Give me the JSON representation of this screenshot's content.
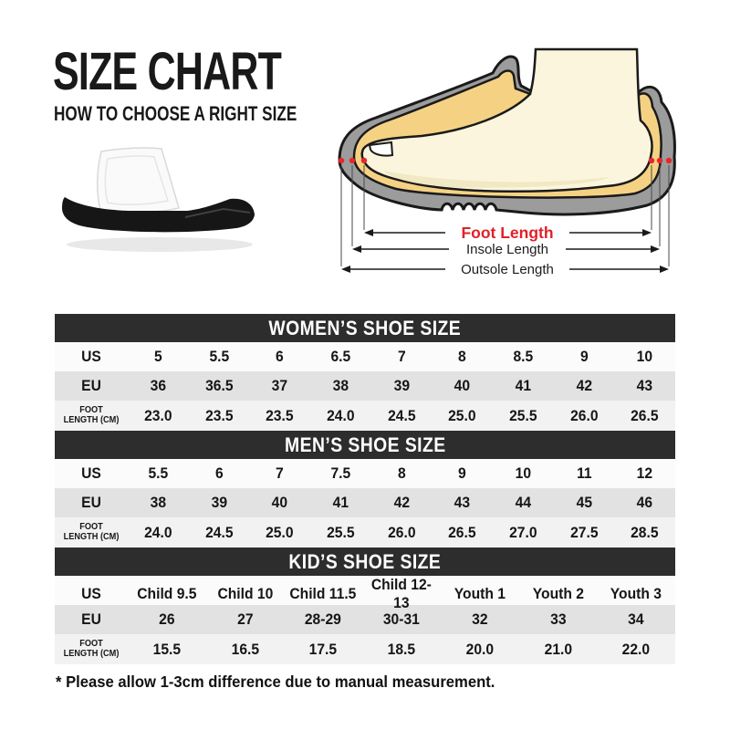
{
  "page": {
    "title": "SIZE CHART",
    "subtitle": "HOW TO CHOOSE A RIGHT SIZE",
    "footnote": "* Please allow 1-3cm difference due to manual measurement."
  },
  "diagram": {
    "labels": {
      "foot": "Foot Length",
      "insole": "Insole Length",
      "outsole": "Outsole Length"
    },
    "colors": {
      "foot_label_red": "#e02128",
      "dot_red": "#e8262c",
      "shoe_gray": "#9c9c9c",
      "insole_yellow": "#f5d283",
      "foot_cream": "#faf5dc"
    }
  },
  "sandal": {
    "sole_color": "#161616",
    "strap_color": "#fafafa"
  },
  "tables": [
    {
      "title": "WOMEN’S SHOE SIZE",
      "rows": [
        {
          "label": "US",
          "values": [
            "5",
            "5.5",
            "6",
            "6.5",
            "7",
            "8",
            "8.5",
            "9",
            "10"
          ]
        },
        {
          "label": "EU",
          "values": [
            "36",
            "36.5",
            "37",
            "38",
            "39",
            "40",
            "41",
            "42",
            "43"
          ]
        },
        {
          "label": "FOOT LENGTH (CM)",
          "label_lines": [
            "FOOT",
            "LENGTH (CM)"
          ],
          "values": [
            "23.0",
            "23.5",
            "23.5",
            "24.0",
            "24.5",
            "25.0",
            "25.5",
            "26.0",
            "26.5"
          ]
        }
      ]
    },
    {
      "title": "MEN’S SHOE SIZE",
      "rows": [
        {
          "label": "US",
          "values": [
            "5.5",
            "6",
            "7",
            "7.5",
            "8",
            "9",
            "10",
            "11",
            "12"
          ]
        },
        {
          "label": "EU",
          "values": [
            "38",
            "39",
            "40",
            "41",
            "42",
            "43",
            "44",
            "45",
            "46"
          ]
        },
        {
          "label": "FOOT LENGTH (CM)",
          "label_lines": [
            "FOOT",
            "LENGTH (CM)"
          ],
          "values": [
            "24.0",
            "24.5",
            "25.0",
            "25.5",
            "26.0",
            "26.5",
            "27.0",
            "27.5",
            "28.5"
          ]
        }
      ]
    },
    {
      "title": "KID’S SHOE SIZE",
      "rows": [
        {
          "label": "US",
          "values": [
            "Child 9.5",
            "Child 10",
            "Child 11.5",
            "Child 12-13",
            "Youth 1",
            "Youth 2",
            "Youth 3"
          ]
        },
        {
          "label": "EU",
          "values": [
            "26",
            "27",
            "28-29",
            "30-31",
            "32",
            "33",
            "34"
          ]
        },
        {
          "label": "FOOT LENGTH (CM)",
          "label_lines": [
            "FOOT",
            "LENGTH (CM)"
          ],
          "values": [
            "15.5",
            "16.5",
            "17.5",
            "18.5",
            "20.0",
            "21.0",
            "22.0"
          ]
        }
      ]
    }
  ]
}
